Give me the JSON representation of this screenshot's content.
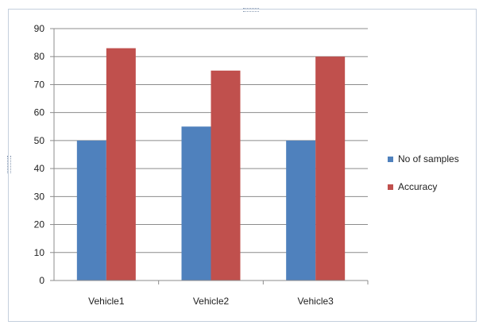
{
  "chart_data": {
    "type": "bar",
    "categories": [
      "Vehicle1",
      "Vehicle2",
      "Vehicle3"
    ],
    "series": [
      {
        "name": "No of samples",
        "values": [
          50,
          55,
          50
        ],
        "color": "#4f81bd"
      },
      {
        "name": "Accuracy",
        "values": [
          83,
          75,
          80
        ],
        "color": "#c0504d"
      }
    ],
    "ylim": [
      0,
      90
    ],
    "yticks": [
      "0",
      "10",
      "20",
      "30",
      "40",
      "50",
      "60",
      "70",
      "80",
      "90"
    ],
    "grid": true,
    "legend_position": "right"
  },
  "legend": {
    "items": [
      {
        "label": "No of samples",
        "color": "#4f81bd"
      },
      {
        "label": "Accuracy",
        "color": "#c0504d"
      }
    ]
  }
}
